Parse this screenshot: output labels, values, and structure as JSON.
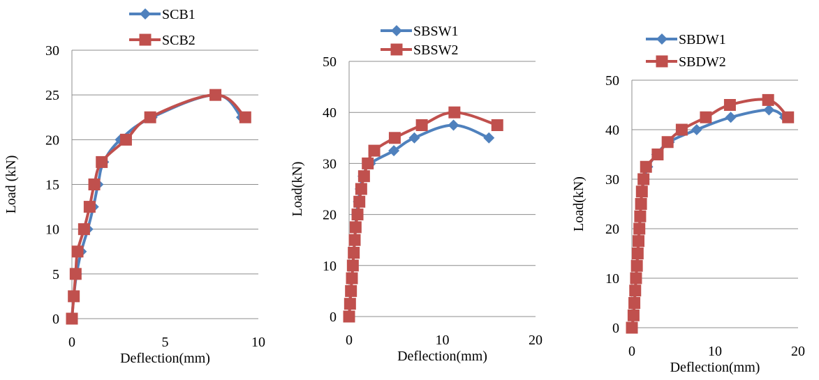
{
  "chart_data": [
    {
      "type": "line",
      "xlabel": "Deflection(mm)",
      "ylabel": "Load (kN)",
      "xlim": [
        0,
        10
      ],
      "ylim": [
        0,
        30
      ],
      "xticks": [
        0,
        5,
        10
      ],
      "yticks": [
        0,
        5,
        10,
        15,
        20,
        25,
        30
      ],
      "grid": "horizontal",
      "legend": "top",
      "series": [
        {
          "name": "SCB1",
          "color": "#4F81BD",
          "marker": "diamond",
          "points": [
            [
              0,
              0
            ],
            [
              0.1,
              2.5
            ],
            [
              0.25,
              5
            ],
            [
              0.5,
              7.5
            ],
            [
              0.85,
              10
            ],
            [
              1.15,
              12.5
            ],
            [
              1.4,
              15
            ],
            [
              1.7,
              17.5
            ],
            [
              2.6,
              20
            ],
            [
              4.3,
              22.5
            ],
            [
              7.7,
              25
            ],
            [
              9.1,
              22.5
            ]
          ]
        },
        {
          "name": "SCB2",
          "color": "#C0504D",
          "marker": "square",
          "points": [
            [
              0,
              0
            ],
            [
              0.1,
              2.5
            ],
            [
              0.2,
              5
            ],
            [
              0.3,
              7.5
            ],
            [
              0.65,
              10
            ],
            [
              0.95,
              12.5
            ],
            [
              1.2,
              15
            ],
            [
              1.6,
              17.5
            ],
            [
              2.9,
              20
            ],
            [
              4.2,
              22.5
            ],
            [
              7.7,
              25
            ],
            [
              9.3,
              22.5
            ]
          ]
        }
      ]
    },
    {
      "type": "line",
      "xlabel": "Deflection(mm)",
      "ylabel": "Load(kN)",
      "xlim": [
        0,
        20
      ],
      "ylim": [
        0,
        50
      ],
      "xticks": [
        0,
        10,
        20
      ],
      "yticks": [
        0,
        10,
        20,
        30,
        40,
        50
      ],
      "grid": "horizontal",
      "legend": "top",
      "series": [
        {
          "name": "SBSW1",
          "color": "#4F81BD",
          "marker": "diamond",
          "points": [
            [
              0,
              0
            ],
            [
              0.1,
              2.5
            ],
            [
              0.2,
              5
            ],
            [
              0.3,
              7.5
            ],
            [
              0.4,
              10
            ],
            [
              0.5,
              12.5
            ],
            [
              0.6,
              15
            ],
            [
              0.7,
              17.5
            ],
            [
              0.8,
              20
            ],
            [
              1.0,
              22.5
            ],
            [
              1.2,
              25
            ],
            [
              1.5,
              27.5
            ],
            [
              2.3,
              30
            ],
            [
              4.8,
              32.5
            ],
            [
              7.0,
              35
            ],
            [
              11.2,
              37.5
            ],
            [
              15.0,
              35
            ]
          ]
        },
        {
          "name": "SBSW2",
          "color": "#C0504D",
          "marker": "square",
          "points": [
            [
              0,
              0
            ],
            [
              0.1,
              2.5
            ],
            [
              0.2,
              5
            ],
            [
              0.3,
              7.5
            ],
            [
              0.4,
              10
            ],
            [
              0.5,
              12.5
            ],
            [
              0.6,
              15
            ],
            [
              0.7,
              17.5
            ],
            [
              0.9,
              20
            ],
            [
              1.1,
              22.5
            ],
            [
              1.3,
              25
            ],
            [
              1.6,
              27.5
            ],
            [
              2.0,
              30
            ],
            [
              2.7,
              32.5
            ],
            [
              4.9,
              35
            ],
            [
              7.8,
              37.5
            ],
            [
              11.3,
              40
            ],
            [
              15.9,
              37.5
            ]
          ]
        }
      ]
    },
    {
      "type": "line",
      "xlabel": "Deflection(mm)",
      "ylabel": "Load(kN)",
      "xlim": [
        0,
        20
      ],
      "ylim": [
        0,
        50
      ],
      "xticks": [
        0,
        10,
        20
      ],
      "yticks": [
        0,
        10,
        20,
        30,
        40,
        50
      ],
      "grid": "horizontal",
      "legend": "top",
      "series": [
        {
          "name": "SBDW1",
          "color": "#4F81BD",
          "marker": "diamond",
          "points": [
            [
              0,
              0
            ],
            [
              0.2,
              2.5
            ],
            [
              0.3,
              5
            ],
            [
              0.4,
              7.5
            ],
            [
              0.5,
              10
            ],
            [
              0.6,
              12.5
            ],
            [
              0.7,
              15
            ],
            [
              0.8,
              17.5
            ],
            [
              0.9,
              20
            ],
            [
              1.0,
              22.5
            ],
            [
              1.1,
              25
            ],
            [
              1.2,
              27.5
            ],
            [
              1.5,
              30
            ],
            [
              1.9,
              32.5
            ],
            [
              3.0,
              35
            ],
            [
              4.5,
              37.5
            ],
            [
              7.8,
              40
            ],
            [
              11.9,
              42.5
            ],
            [
              16.5,
              44
            ],
            [
              18.4,
              42.5
            ]
          ]
        },
        {
          "name": "SBDW2",
          "color": "#C0504D",
          "marker": "square",
          "points": [
            [
              0,
              0
            ],
            [
              0.2,
              2.5
            ],
            [
              0.3,
              5
            ],
            [
              0.4,
              7.5
            ],
            [
              0.5,
              10
            ],
            [
              0.6,
              12.5
            ],
            [
              0.7,
              15
            ],
            [
              0.8,
              17.5
            ],
            [
              0.9,
              20
            ],
            [
              1.0,
              22.5
            ],
            [
              1.1,
              25
            ],
            [
              1.2,
              27.5
            ],
            [
              1.4,
              30
            ],
            [
              1.7,
              32.5
            ],
            [
              3.1,
              35
            ],
            [
              4.3,
              37.5
            ],
            [
              6.0,
              40
            ],
            [
              8.9,
              42.5
            ],
            [
              11.8,
              45
            ],
            [
              16.4,
              46
            ],
            [
              18.8,
              42.5
            ]
          ]
        }
      ]
    }
  ]
}
